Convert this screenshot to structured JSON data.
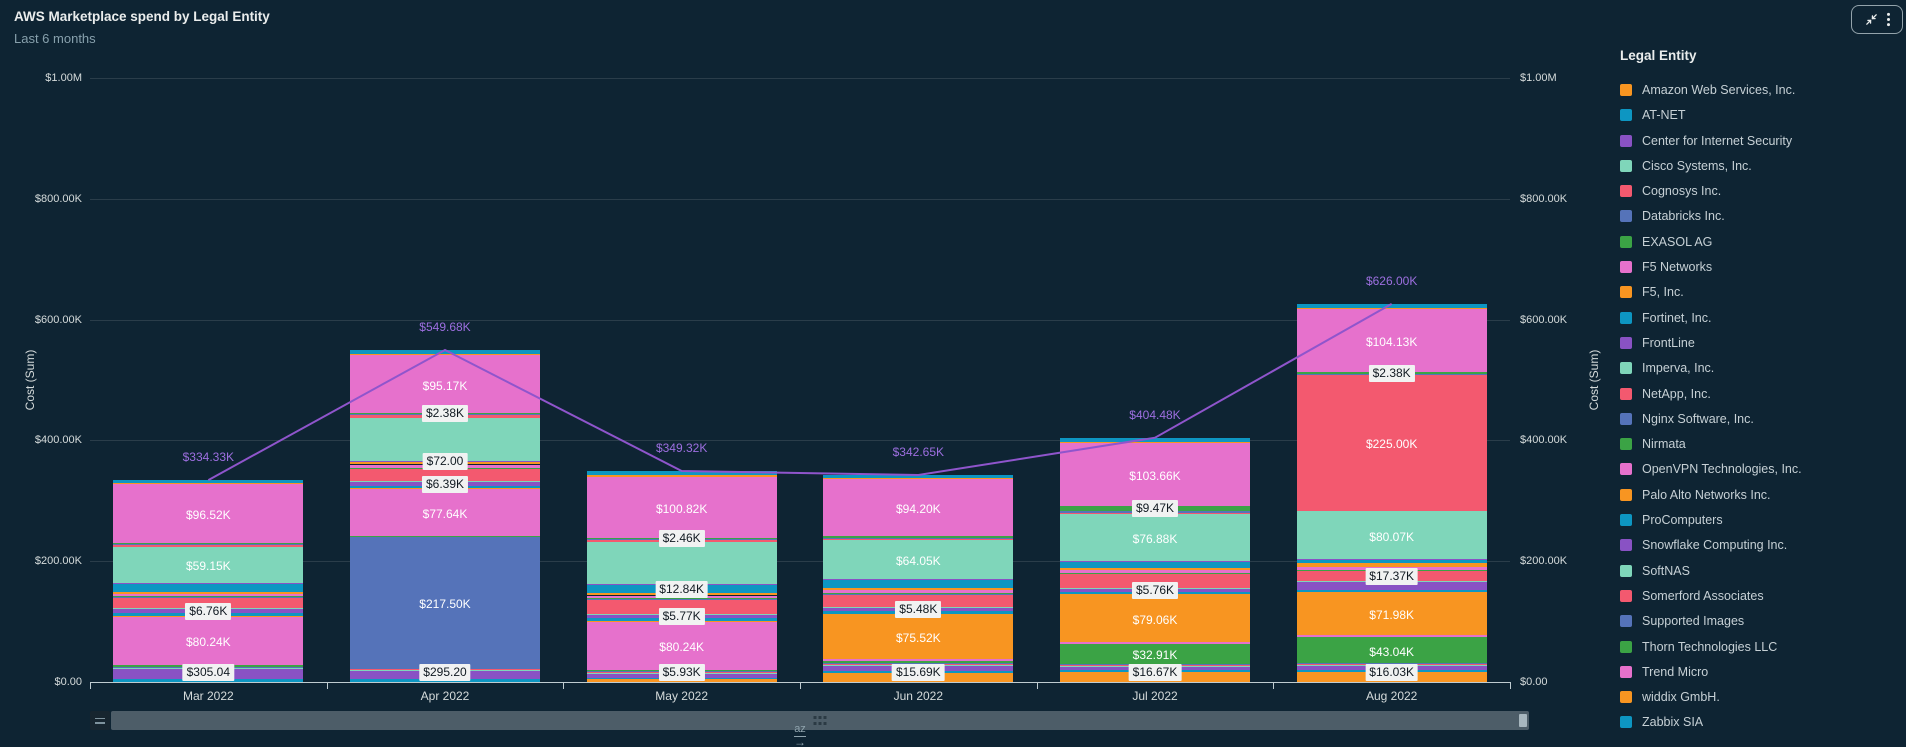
{
  "header": {
    "title": "AWS Marketplace spend by Legal Entity",
    "subtitle": "Last 6 months"
  },
  "window_controls": {
    "collapse_icon": "collapse-arrows-icon",
    "menu_icon": "vertical-kebab-icon"
  },
  "axes": {
    "y_left_title": "Cost (Sum)",
    "y_right_title": "Cost (Sum)",
    "y_ticks": [
      "$1.00M",
      "$800.00K",
      "$600.00K",
      "$400.00K",
      "$200.00K",
      "$0.00"
    ]
  },
  "legend": {
    "title": "Legal Entity",
    "items": [
      {
        "name": "Amazon Web Services, Inc.",
        "color": "#f89521"
      },
      {
        "name": "AT-NET",
        "color": "#0d96c2"
      },
      {
        "name": "Center for Internet Security",
        "color": "#8952c4"
      },
      {
        "name": "Cisco Systems, Inc.",
        "color": "#7fd6ba"
      },
      {
        "name": "Cognosys Inc.",
        "color": "#f3596f"
      },
      {
        "name": "Databricks Inc.",
        "color": "#5573b9"
      },
      {
        "name": "EXASOL AG",
        "color": "#3ba345"
      },
      {
        "name": "F5 Networks",
        "color": "#e671cc"
      },
      {
        "name": "F5, Inc.",
        "color": "#f89521"
      },
      {
        "name": "Fortinet, Inc.",
        "color": "#0d96c2"
      },
      {
        "name": "FrontLine",
        "color": "#8952c4"
      },
      {
        "name": "Imperva, Inc.",
        "color": "#7fd6ba"
      },
      {
        "name": "NetApp, Inc.",
        "color": "#f3596f"
      },
      {
        "name": "Nginx Software, Inc.",
        "color": "#5573b9"
      },
      {
        "name": "Nirmata",
        "color": "#3ba345"
      },
      {
        "name": "OpenVPN Technologies, Inc.",
        "color": "#e671cc"
      },
      {
        "name": "Palo Alto Networks Inc.",
        "color": "#f89521"
      },
      {
        "name": "ProComputers",
        "color": "#0d96c2"
      },
      {
        "name": "Snowflake Computing Inc.",
        "color": "#8952c4"
      },
      {
        "name": "SoftNAS",
        "color": "#7fd6ba"
      },
      {
        "name": "Somerford Associates",
        "color": "#f3596f"
      },
      {
        "name": "Supported Images",
        "color": "#5573b9"
      },
      {
        "name": "Thorn Technologies LLC",
        "color": "#3ba345"
      },
      {
        "name": "Trend Micro",
        "color": "#e671cc"
      },
      {
        "name": "widdix GmbH.",
        "color": "#f89521"
      },
      {
        "name": "Zabbix SIA",
        "color": "#0d96c2"
      }
    ]
  },
  "chart_data": {
    "type": "bar",
    "stacked": true,
    "units": "USD thousands",
    "ylim": [
      0,
      1000
    ],
    "grid": true,
    "legend_position": "right",
    "categories": [
      "Mar 2022",
      "Apr 2022",
      "May 2022",
      "Jun 2022",
      "Jul 2022",
      "Aug 2022"
    ],
    "series": [
      {
        "name": "Amazon Web Services, Inc.",
        "color": "#f89521",
        "values": [
          0.305,
          0.2952,
          4.2,
          15.69,
          16.67,
          16.03
        ]
      },
      {
        "name": "AT-NET",
        "color": "#0d96c2",
        "values": [
          4.0,
          4.0,
          3.0,
          3.0,
          3.0,
          3.5
        ]
      },
      {
        "name": "Center for Internet Security",
        "color": "#8952c4",
        "values": [
          17.0,
          14.0,
          5.93,
          8.51,
          6.0,
          7.0
        ]
      },
      {
        "name": "Cisco Systems, Inc.",
        "color": "#7fd6ba",
        "values": [
          1.2,
          1.5,
          1.5,
          1.5,
          1.5,
          1.5
        ]
      },
      {
        "name": "Cognosys Inc.",
        "color": "#f3596f",
        "values": [
          2.0,
          2.5,
          2.0,
          2.0,
          2.0,
          2.0
        ]
      },
      {
        "name": "Databricks Inc.",
        "color": "#5573b9",
        "values": [
          0.8,
          217.5,
          1.0,
          1.0,
          1.0,
          1.0
        ]
      },
      {
        "name": "EXASOL AG",
        "color": "#3ba345",
        "values": [
          3.0,
          2.0,
          2.5,
          3.0,
          32.91,
          43.04
        ]
      },
      {
        "name": "F5 Networks",
        "color": "#e671cc",
        "values": [
          80.24,
          77.64,
          80.24,
          3.0,
          3.0,
          3.0
        ]
      },
      {
        "name": "F5, Inc.",
        "color": "#f89521",
        "values": [
          0.5,
          1.0,
          1.0,
          75.52,
          79.06,
          71.98
        ]
      },
      {
        "name": "Fortinet, Inc.",
        "color": "#0d96c2",
        "values": [
          5.0,
          4.0,
          4.5,
          4.0,
          4.0,
          4.0
        ]
      },
      {
        "name": "FrontLine",
        "color": "#8952c4",
        "values": [
          6.76,
          6.39,
          5.77,
          5.48,
          5.76,
          12.0
        ]
      },
      {
        "name": "Imperva, Inc.",
        "color": "#7fd6ba",
        "values": [
          1.0,
          1.5,
          1.2,
          1.5,
          1.5,
          1.5
        ]
      },
      {
        "name": "NetApp, Inc.",
        "color": "#f3596f",
        "values": [
          18.5,
          20.0,
          24.0,
          21.0,
          22.0,
          17.37
        ]
      },
      {
        "name": "Nginx Software, Inc.",
        "color": "#5573b9",
        "values": [
          1.2,
          1.5,
          1.3,
          1.3,
          1.3,
          1.3
        ]
      },
      {
        "name": "Nirmata",
        "color": "#3ba345",
        "values": [
          0.5,
          0.8,
          0.6,
          0.7,
          0.77,
          0.7
        ]
      },
      {
        "name": "OpenVPN Technologies, Inc.",
        "color": "#e671cc",
        "values": [
          4.0,
          5.5,
          4.5,
          4.5,
          4.5,
          4.5
        ]
      },
      {
        "name": "Palo Alto Networks Inc.",
        "color": "#f89521",
        "values": [
          3.5,
          5.0,
          4.0,
          4.0,
          4.0,
          6.0
        ]
      },
      {
        "name": "ProComputers",
        "color": "#0d96c2",
        "values": [
          13.0,
          0.072,
          12.84,
          13.0,
          10.0,
          5.0
        ]
      },
      {
        "name": "Snowflake Computing Inc.",
        "color": "#8952c4",
        "values": [
          2.0,
          1.5,
          1.8,
          1.8,
          1.8,
          1.8
        ]
      },
      {
        "name": "SoftNAS",
        "color": "#7fd6ba",
        "values": [
          59.15,
          70.0,
          70.0,
          64.05,
          76.88,
          80.07
        ]
      },
      {
        "name": "Somerford Associates",
        "color": "#f3596f",
        "values": [
          3.0,
          4.63,
          3.2,
          3.0,
          3.0,
          225.0
        ]
      },
      {
        "name": "Supported Images",
        "color": "#5573b9",
        "values": [
          1.5,
          1.8,
          1.6,
          1.5,
          2.0,
          2.0
        ]
      },
      {
        "name": "Thorn Technologies LLC",
        "color": "#3ba345",
        "values": [
          2.5,
          2.38,
          2.46,
          2.4,
          9.47,
          2.38
        ]
      },
      {
        "name": "Trend Micro",
        "color": "#e671cc",
        "values": [
          96.52,
          95.17,
          100.82,
          94.2,
          103.66,
          104.13
        ]
      },
      {
        "name": "widdix GmbH.",
        "color": "#f89521",
        "values": [
          2.0,
          2.5,
          2.2,
          2.0,
          2.2,
          2.5
        ]
      },
      {
        "name": "Zabbix SIA",
        "color": "#0d96c2",
        "values": [
          5.155,
          6.5,
          7.16,
          5.0,
          6.5,
          6.7
        ]
      }
    ],
    "totals": {
      "values": [
        334.33,
        549.68,
        349.32,
        342.65,
        404.48,
        626.0
      ],
      "labels": [
        "$334.33K",
        "$549.68K",
        "$349.32K",
        "$342.65K",
        "$404.48K",
        "$626.00K"
      ],
      "line_color": "#8f55cc",
      "label_color": "#9d6fe0"
    },
    "segment_labels": [
      {
        "month": "Mar 2022",
        "entity": "Amazon Web Services, Inc.",
        "text": "$305.04",
        "style": "boxed"
      },
      {
        "month": "Mar 2022",
        "entity": "F5 Networks",
        "text": "$80.24K",
        "style": "plain"
      },
      {
        "month": "Mar 2022",
        "entity": "FrontLine",
        "text": "$6.76K",
        "style": "boxed"
      },
      {
        "month": "Mar 2022",
        "entity": "SoftNAS",
        "text": "$59.15K",
        "style": "plain"
      },
      {
        "month": "Mar 2022",
        "entity": "Trend Micro",
        "text": "$96.52K",
        "style": "plain"
      },
      {
        "month": "Apr 2022",
        "entity": "Amazon Web Services, Inc.",
        "text": "$295.20",
        "style": "boxed"
      },
      {
        "month": "Apr 2022",
        "entity": "Databricks Inc.",
        "text": "$217.50K",
        "style": "plain"
      },
      {
        "month": "Apr 2022",
        "entity": "F5 Networks",
        "text": "$77.64K",
        "style": "plain"
      },
      {
        "month": "Apr 2022",
        "entity": "FrontLine",
        "text": "$6.39K",
        "style": "boxed"
      },
      {
        "month": "Apr 2022",
        "entity": "ProComputers",
        "text": "$72.00",
        "style": "boxed"
      },
      {
        "month": "Apr 2022",
        "entity": "Thorn Technologies LLC",
        "text": "$2.38K",
        "style": "boxed"
      },
      {
        "month": "Apr 2022",
        "entity": "Trend Micro",
        "text": "$95.17K",
        "style": "plain"
      },
      {
        "month": "May 2022",
        "entity": "Center for Internet Security",
        "text": "$5.93K",
        "style": "boxed"
      },
      {
        "month": "May 2022",
        "entity": "F5 Networks",
        "text": "$80.24K",
        "style": "plain"
      },
      {
        "month": "May 2022",
        "entity": "FrontLine",
        "text": "$5.77K",
        "style": "boxed"
      },
      {
        "month": "May 2022",
        "entity": "ProComputers",
        "text": "$12.84K",
        "style": "boxed"
      },
      {
        "month": "May 2022",
        "entity": "Thorn Technologies LLC",
        "text": "$2.46K",
        "style": "boxed"
      },
      {
        "month": "May 2022",
        "entity": "Trend Micro",
        "text": "$100.82K",
        "style": "plain"
      },
      {
        "month": "Jun 2022",
        "entity": "Amazon Web Services, Inc.",
        "text": "$15.69K",
        "style": "boxed"
      },
      {
        "month": "Jun 2022",
        "entity": "F5, Inc.",
        "text": "$75.52K",
        "style": "plain"
      },
      {
        "month": "Jun 2022",
        "entity": "FrontLine",
        "text": "$5.48K",
        "style": "boxed"
      },
      {
        "month": "Jun 2022",
        "entity": "SoftNAS",
        "text": "$64.05K",
        "style": "plain"
      },
      {
        "month": "Jun 2022",
        "entity": "Trend Micro",
        "text": "$94.20K",
        "style": "plain"
      },
      {
        "month": "Jul 2022",
        "entity": "Amazon Web Services, Inc.",
        "text": "$16.67K",
        "style": "boxed"
      },
      {
        "month": "Jul 2022",
        "entity": "EXASOL AG",
        "text": "$32.91K",
        "style": "plain"
      },
      {
        "month": "Jul 2022",
        "entity": "F5, Inc.",
        "text": "$79.06K",
        "style": "plain"
      },
      {
        "month": "Jul 2022",
        "entity": "FrontLine",
        "text": "$5.76K",
        "style": "boxed"
      },
      {
        "month": "Jul 2022",
        "entity": "SoftNAS",
        "text": "$76.88K",
        "style": "plain"
      },
      {
        "month": "Jul 2022",
        "entity": "Thorn Technologies LLC",
        "text": "$9.47K",
        "style": "boxed"
      },
      {
        "month": "Jul 2022",
        "entity": "Trend Micro",
        "text": "$103.66K",
        "style": "plain"
      },
      {
        "month": "Aug 2022",
        "entity": "Amazon Web Services, Inc.",
        "text": "$16.03K",
        "style": "boxed"
      },
      {
        "month": "Aug 2022",
        "entity": "EXASOL AG",
        "text": "$43.04K",
        "style": "plain"
      },
      {
        "month": "Aug 2022",
        "entity": "F5, Inc.",
        "text": "$71.98K",
        "style": "plain"
      },
      {
        "month": "Aug 2022",
        "entity": "NetApp, Inc.",
        "text": "$17.37K",
        "style": "boxed"
      },
      {
        "month": "Aug 2022",
        "entity": "SoftNAS",
        "text": "$80.07K",
        "style": "plain"
      },
      {
        "month": "Aug 2022",
        "entity": "Somerford Associates",
        "text": "$225.00K",
        "style": "plain"
      },
      {
        "month": "Aug 2022",
        "entity": "Thorn Technologies LLC",
        "text": "$2.38K",
        "style": "boxed"
      },
      {
        "month": "Aug 2022",
        "entity": "Trend Micro",
        "text": "$104.13K",
        "style": "plain"
      }
    ]
  },
  "footer": {
    "sort_label": "az",
    "sort_arrow": "→"
  }
}
